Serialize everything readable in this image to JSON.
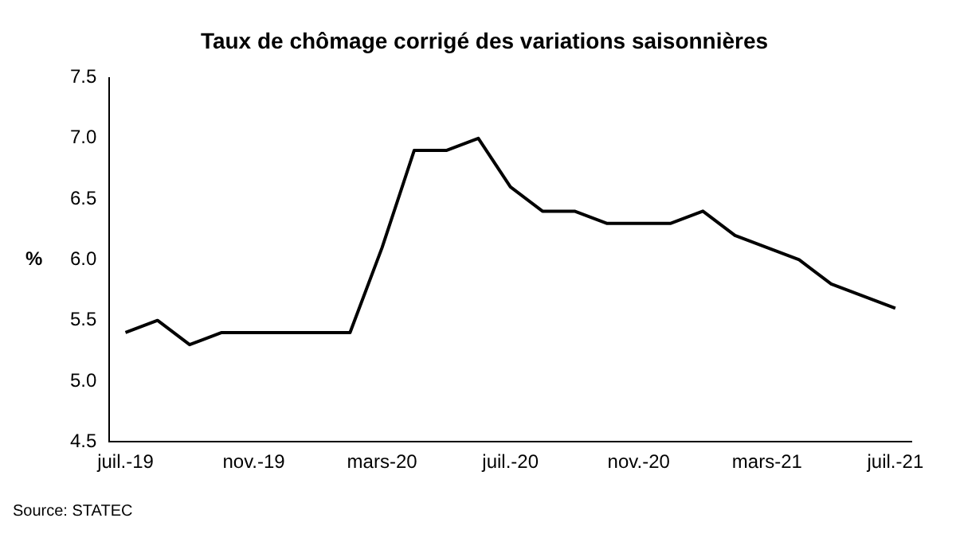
{
  "chart_data": {
    "type": "line",
    "title": "Taux de chômage corrigé des variations saisonnières",
    "ylabel": "%",
    "categories": [
      "juil.-19",
      null,
      null,
      null,
      "nov.-19",
      null,
      null,
      null,
      "mars-20",
      null,
      null,
      null,
      "juil.-20",
      null,
      null,
      null,
      "nov.-20",
      null,
      null,
      null,
      "mars-21",
      null,
      null,
      null,
      "juil.-21"
    ],
    "series": [
      {
        "color": "#000000",
        "values": [
          5.4,
          5.5,
          5.3,
          5.4,
          5.4,
          5.4,
          5.4,
          5.4,
          6.1,
          6.9,
          6.9,
          7.0,
          6.6,
          6.4,
          6.4,
          6.3,
          6.3,
          6.3,
          6.4,
          6.2,
          6.1,
          6.0,
          5.8,
          5.7,
          5.6
        ]
      }
    ],
    "ylim": [
      4.5,
      7.5
    ],
    "yticks": [
      {
        "value": 4.5,
        "label": "4.5"
      },
      {
        "value": 5,
        "label": "5.0"
      },
      {
        "value": 5.5,
        "label": "5.5"
      },
      {
        "value": 6,
        "label": "6.0"
      },
      {
        "value": 6.5,
        "label": "6.5"
      },
      {
        "value": 7,
        "label": "7.0"
      },
      {
        "value": 7.5,
        "label": "7.5"
      }
    ],
    "grid": false,
    "legend": false,
    "marker": "none",
    "line_style": "solid",
    "annotations": [
      "Source: STATEC"
    ]
  }
}
